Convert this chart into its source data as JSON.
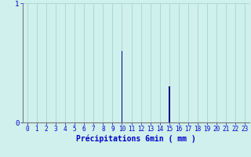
{
  "hours": [
    0,
    1,
    2,
    3,
    4,
    5,
    6,
    7,
    8,
    9,
    10,
    11,
    12,
    13,
    14,
    15,
    16,
    17,
    18,
    19,
    20,
    21,
    22,
    23
  ],
  "values": [
    0,
    0,
    0,
    0,
    0,
    0,
    0,
    0,
    0,
    0,
    0.6,
    0,
    0,
    0,
    0,
    0.3,
    0,
    0,
    0,
    0,
    0,
    0,
    0,
    0
  ],
  "bar_color": "#00008B",
  "background_color": "#cff0ec",
  "grid_color": "#aad4ce",
  "axis_color": "#888888",
  "text_color": "#0000CC",
  "xlabel": "Précipitations 6min ( mm )",
  "ylim": [
    0,
    1.0
  ],
  "xlim": [
    0,
    23
  ],
  "yticks": [
    0,
    1
  ],
  "xticks": [
    0,
    1,
    2,
    3,
    4,
    5,
    6,
    7,
    8,
    9,
    10,
    11,
    12,
    13,
    14,
    15,
    16,
    17,
    18,
    19,
    20,
    21,
    22,
    23
  ],
  "xlabel_fontsize": 7,
  "tick_fontsize": 5.5
}
